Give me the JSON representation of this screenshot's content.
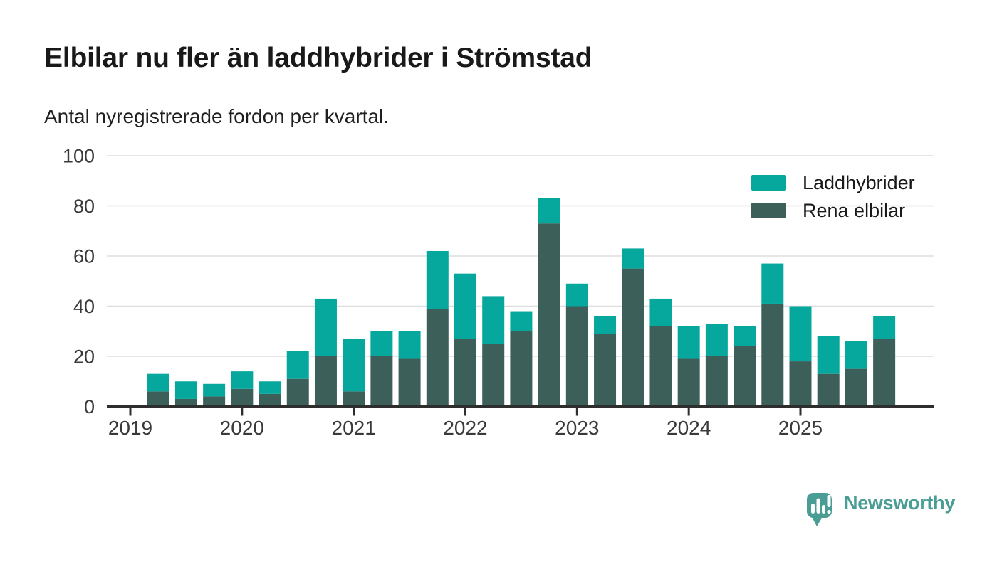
{
  "chart_data": {
    "type": "bar",
    "stacked": true,
    "title": "Elbilar nu fler än laddhybrider i Strömstad",
    "subtitle": "Antal nyregistrerade fordon per kvartal.",
    "xlabel": "",
    "ylabel": "",
    "ylim": [
      0,
      100
    ],
    "yticks": [
      0,
      20,
      40,
      60,
      80,
      100
    ],
    "grid": true,
    "legend_position": "top-right",
    "categories": [
      "2019Q2",
      "2019Q3",
      "2019Q4",
      "2020Q1",
      "2020Q2",
      "2020Q3",
      "2020Q4",
      "2021Q1",
      "2021Q2",
      "2021Q3",
      "2021Q4",
      "2022Q1",
      "2022Q2",
      "2022Q3",
      "2022Q4",
      "2023Q1",
      "2023Q2",
      "2023Q3",
      "2023Q4",
      "2024Q1",
      "2024Q2",
      "2024Q3",
      "2024Q4",
      "2025Q1",
      "2025Q2",
      "2025Q3",
      "2025Q4"
    ],
    "year_ticks": [
      "2019",
      "2020",
      "2021",
      "2022",
      "2023",
      "2024",
      "2025"
    ],
    "series": [
      {
        "name": "Rena elbilar",
        "color": "#3d5f5a",
        "values": [
          6,
          3,
          4,
          7,
          5,
          11,
          20,
          6,
          20,
          19,
          39,
          27,
          25,
          30,
          73,
          40,
          29,
          55,
          32,
          19,
          20,
          24,
          41,
          18,
          13,
          15,
          27
        ]
      },
      {
        "name": "Laddhybrider",
        "color": "#06a79d",
        "values": [
          7,
          7,
          5,
          7,
          5,
          11,
          23,
          21,
          10,
          11,
          23,
          26,
          19,
          8,
          10,
          9,
          7,
          8,
          11,
          13,
          13,
          8,
          16,
          22,
          15,
          11,
          9
        ]
      }
    ],
    "totals": [
      13,
      10,
      9,
      14,
      10,
      22,
      43,
      27,
      30,
      30,
      62,
      53,
      44,
      38,
      83,
      49,
      36,
      63,
      43,
      32,
      33,
      32,
      57,
      40,
      28,
      26,
      36
    ]
  },
  "legend": {
    "items": [
      {
        "label": "Laddhybrider",
        "color": "#06a79d"
      },
      {
        "label": "Rena elbilar",
        "color": "#3d5f5a"
      }
    ]
  },
  "branding": {
    "logo_text": "Newsworthy",
    "logo_color": "#4a9d94"
  },
  "style_colors": {
    "gridline": "#dedede",
    "axis": "#2e2e2e",
    "tick_label": "#3a3a3a"
  }
}
